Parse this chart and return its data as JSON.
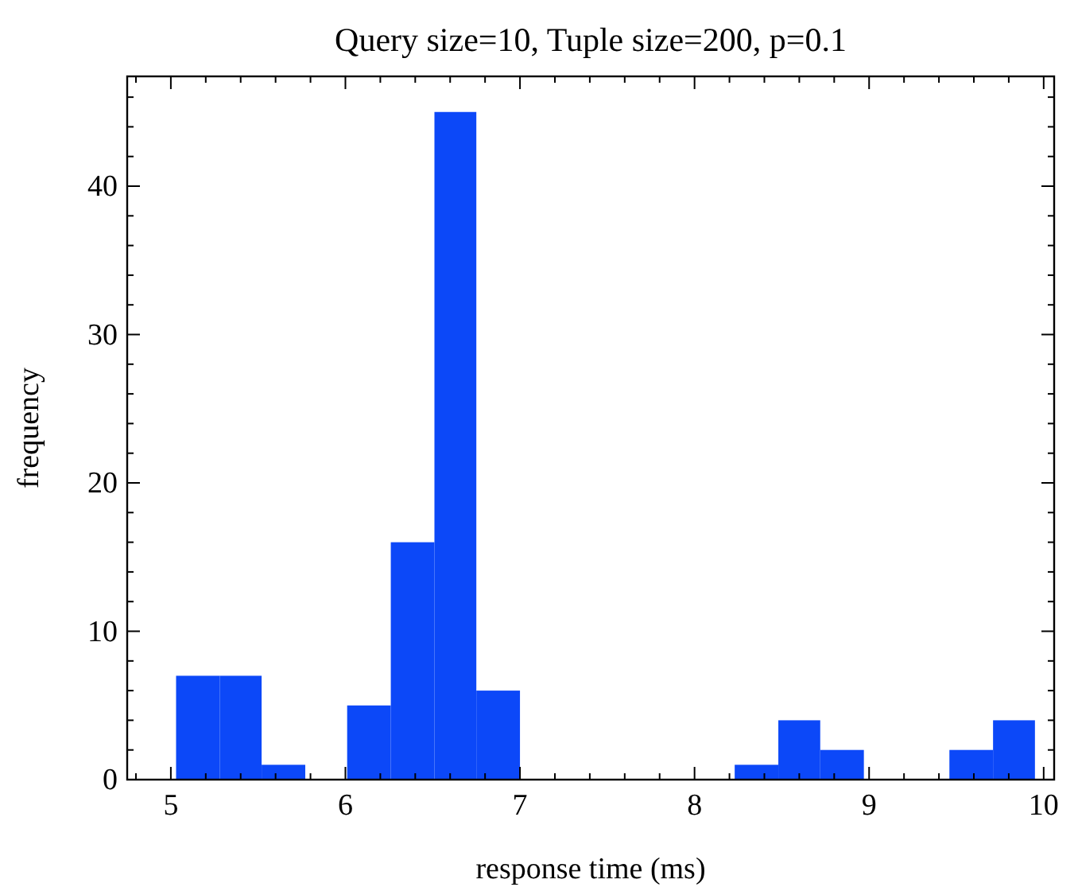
{
  "chart_data": {
    "type": "histogram",
    "title": "Query size=10, Tuple size=200, p=0.1",
    "xlabel": "response time (ms)",
    "ylabel": "frequency",
    "bins": [
      5.03,
      5.28,
      5.52,
      5.77,
      6.01,
      6.26,
      6.51,
      6.75,
      7.0,
      8.23,
      8.48,
      8.72,
      8.97,
      9.46,
      9.71,
      9.95
    ],
    "values": [
      7,
      7,
      1,
      0,
      5,
      16,
      45,
      6,
      0,
      1,
      4,
      2,
      0,
      2,
      4
    ],
    "color": "#0c48f8",
    "xlim": [
      4.75,
      10.06
    ],
    "ylim": [
      0,
      47.4
    ],
    "xticks": [
      5,
      6,
      7,
      8,
      9,
      10,
      {
        "value": 4.8,
        "label": null
      },
      {
        "value": 5.2,
        "label": null
      },
      {
        "value": 5.4,
        "label": null
      },
      {
        "value": 5.6,
        "label": null
      },
      {
        "value": 5.8,
        "label": null
      },
      {
        "value": 6.2,
        "label": null
      },
      {
        "value": 6.4,
        "label": null
      },
      {
        "value": 6.6,
        "label": null
      },
      {
        "value": 6.8,
        "label": null
      },
      {
        "value": 7.2,
        "label": null
      },
      {
        "value": 7.4,
        "label": null
      },
      {
        "value": 7.6,
        "label": null
      },
      {
        "value": 7.8,
        "label": null
      },
      {
        "value": 8.2,
        "label": null
      },
      {
        "value": 8.4,
        "label": null
      },
      {
        "value": 8.6,
        "label": null
      },
      {
        "value": 8.8,
        "label": null
      },
      {
        "value": 9.2,
        "label": null
      },
      {
        "value": 9.4,
        "label": null
      },
      {
        "value": 9.6,
        "label": null
      },
      {
        "value": 9.8,
        "label": null
      }
    ],
    "yticks": [
      0,
      10,
      20,
      30,
      40,
      {
        "value": 2,
        "label": null
      },
      {
        "value": 4,
        "label": null
      },
      {
        "value": 6,
        "label": null
      },
      {
        "value": 8,
        "label": null
      },
      {
        "value": 12,
        "label": null
      },
      {
        "value": 14,
        "label": null
      },
      {
        "value": 16,
        "label": null
      },
      {
        "value": 18,
        "label": null
      },
      {
        "value": 22,
        "label": null
      },
      {
        "value": 24,
        "label": null
      },
      {
        "value": 26,
        "label": null
      },
      {
        "value": 28,
        "label": null
      },
      {
        "value": 32,
        "label": null
      },
      {
        "value": 34,
        "label": null
      },
      {
        "value": 36,
        "label": null
      },
      {
        "value": 38,
        "label": null
      },
      {
        "value": 42,
        "label": null
      },
      {
        "value": 44,
        "label": null
      },
      {
        "value": 46,
        "label": null
      }
    ],
    "grid": false
  }
}
